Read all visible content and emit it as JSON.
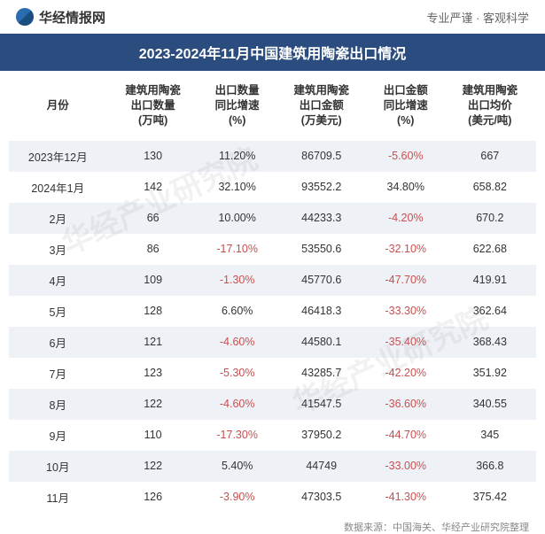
{
  "header": {
    "logo_text": "华经情报网",
    "slogan": "专业严谨 · 客观科学"
  },
  "title": "2023-2024年11月中国建筑用陶瓷出口情况",
  "table": {
    "columns": [
      "月份",
      "建筑用陶瓷\n出口数量\n(万吨)",
      "出口数量\n同比增速\n(%)",
      "建筑用陶瓷\n出口金额\n(万美元)",
      "出口金额\n同比增速\n(%)",
      "建筑用陶瓷\n出口均价\n(美元/吨)"
    ],
    "rows": [
      {
        "month": "2023年12月",
        "qty": "130",
        "qty_yoy": "11.20%",
        "qty_yoy_neg": false,
        "val": "86709.5",
        "val_yoy": "-5.60%",
        "val_yoy_neg": true,
        "price": "667"
      },
      {
        "month": "2024年1月",
        "qty": "142",
        "qty_yoy": "32.10%",
        "qty_yoy_neg": false,
        "val": "93552.2",
        "val_yoy": "34.80%",
        "val_yoy_neg": false,
        "price": "658.82"
      },
      {
        "month": "2月",
        "qty": "66",
        "qty_yoy": "10.00%",
        "qty_yoy_neg": false,
        "val": "44233.3",
        "val_yoy": "-4.20%",
        "val_yoy_neg": true,
        "price": "670.2"
      },
      {
        "month": "3月",
        "qty": "86",
        "qty_yoy": "-17.10%",
        "qty_yoy_neg": true,
        "val": "53550.6",
        "val_yoy": "-32.10%",
        "val_yoy_neg": true,
        "price": "622.68"
      },
      {
        "month": "4月",
        "qty": "109",
        "qty_yoy": "-1.30%",
        "qty_yoy_neg": true,
        "val": "45770.6",
        "val_yoy": "-47.70%",
        "val_yoy_neg": true,
        "price": "419.91"
      },
      {
        "month": "5月",
        "qty": "128",
        "qty_yoy": "6.60%",
        "qty_yoy_neg": false,
        "val": "46418.3",
        "val_yoy": "-33.30%",
        "val_yoy_neg": true,
        "price": "362.64"
      },
      {
        "month": "6月",
        "qty": "121",
        "qty_yoy": "-4.60%",
        "qty_yoy_neg": true,
        "val": "44580.1",
        "val_yoy": "-35.40%",
        "val_yoy_neg": true,
        "price": "368.43"
      },
      {
        "month": "7月",
        "qty": "123",
        "qty_yoy": "-5.30%",
        "qty_yoy_neg": true,
        "val": "43285.7",
        "val_yoy": "-42.20%",
        "val_yoy_neg": true,
        "price": "351.92"
      },
      {
        "month": "8月",
        "qty": "122",
        "qty_yoy": "-4.60%",
        "qty_yoy_neg": true,
        "val": "41547.5",
        "val_yoy": "-36.60%",
        "val_yoy_neg": true,
        "price": "340.55"
      },
      {
        "month": "9月",
        "qty": "110",
        "qty_yoy": "-17.30%",
        "qty_yoy_neg": true,
        "val": "37950.2",
        "val_yoy": "-44.70%",
        "val_yoy_neg": true,
        "price": "345"
      },
      {
        "month": "10月",
        "qty": "122",
        "qty_yoy": "5.40%",
        "qty_yoy_neg": false,
        "val": "44749",
        "val_yoy": "-33.00%",
        "val_yoy_neg": true,
        "price": "366.8"
      },
      {
        "month": "11月",
        "qty": "126",
        "qty_yoy": "-3.90%",
        "qty_yoy_neg": true,
        "val": "47303.5",
        "val_yoy": "-41.30%",
        "val_yoy_neg": true,
        "price": "375.42"
      }
    ],
    "alt_row_bg": "#eef2f7",
    "negative_color": "#c94f4f",
    "text_color": "#333333"
  },
  "source": "数据来源：中国海关、华经产业研究院整理",
  "watermark": "华经产业研究院",
  "colors": {
    "title_bg": "#2b4c7e",
    "title_fg": "#ffffff"
  }
}
